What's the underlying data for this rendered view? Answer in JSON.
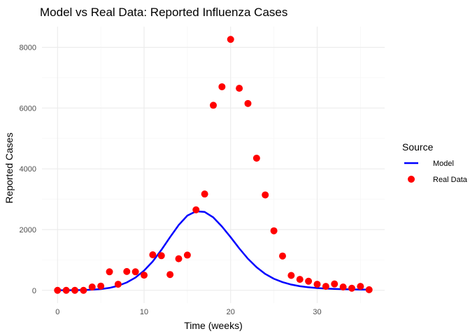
{
  "chart_data": {
    "type": "line",
    "title": "Model vs Real Data: Reported Influenza Cases",
    "xlabel": "Time (weeks)",
    "ylabel": "Reported Cases",
    "xlim": [
      -1.8,
      37.8
    ],
    "ylim": [
      -420,
      8680
    ],
    "x_ticks": [
      0,
      10,
      20,
      30
    ],
    "y_ticks": [
      0,
      2000,
      4000,
      6000,
      8000
    ],
    "grid": true,
    "legend": {
      "title": "Source",
      "placement": "right"
    },
    "series": [
      {
        "name": "Model",
        "kind": "line",
        "color": "#0000ff",
        "x": [
          0,
          1,
          2,
          3,
          4,
          5,
          6,
          7,
          8,
          9,
          10,
          11,
          12,
          13,
          14,
          15,
          16,
          17,
          18,
          19,
          20,
          21,
          22,
          23,
          24,
          25,
          26,
          27,
          28,
          29,
          30,
          31,
          32,
          33,
          34,
          35,
          36
        ],
        "y": [
          2,
          4,
          7,
          12,
          22,
          40,
          80,
          150,
          260,
          420,
          650,
          950,
          1330,
          1750,
          2150,
          2460,
          2600,
          2580,
          2400,
          2100,
          1750,
          1380,
          1040,
          760,
          540,
          380,
          270,
          190,
          135,
          100,
          75,
          58,
          46,
          38,
          32,
          27,
          23
        ]
      },
      {
        "name": "Real Data",
        "kind": "point",
        "color": "#ff0000",
        "x": [
          0,
          1,
          2,
          3,
          4,
          5,
          6,
          7,
          8,
          9,
          10,
          11,
          12,
          13,
          14,
          15,
          16,
          17,
          18,
          19,
          20,
          21,
          22,
          23,
          24,
          25,
          26,
          27,
          28,
          29,
          30,
          31,
          32,
          33,
          34,
          35,
          36
        ],
        "y": [
          0,
          0,
          0,
          0,
          110,
          140,
          610,
          200,
          620,
          610,
          500,
          1170,
          1140,
          520,
          1040,
          1160,
          2650,
          3170,
          6090,
          6700,
          8260,
          6650,
          6150,
          4350,
          3140,
          1960,
          1130,
          490,
          360,
          300,
          200,
          130,
          210,
          110,
          70,
          130,
          20
        ]
      }
    ]
  }
}
